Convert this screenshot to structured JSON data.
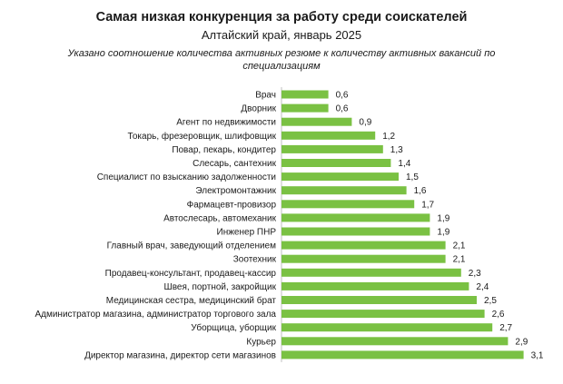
{
  "chart_data": {
    "type": "bar",
    "orientation": "horizontal",
    "title": "Самая низкая конкуренция за работу среди соискателей",
    "subtitle": "Алтайский край, январь 2025",
    "note": "Указано соотношение количества активных резюме к количеству активных вакансий по специализациям",
    "grid": false,
    "bar_color": "#7ac143",
    "categories": [
      "Врач",
      "Дворник",
      "Агент по недвижимости",
      "Токарь, фрезеровщик, шлифовщик",
      "Повар, пекарь, кондитер",
      "Слесарь, сантехник",
      "Специалист по взысканию задолженности",
      "Электромонтажник",
      "Фармацевт-провизор",
      "Автослесарь, автомеханик",
      "Инженер ПНР",
      "Главный врач, заведующий отделением",
      "Зоотехник",
      "Продавец-консультант, продавец-кассир",
      "Швея, портной, закройщик",
      "Медицинская сестра, медицинский брат",
      "Администратор магазина, администратор торгового зала",
      "Уборщица, уборщик",
      "Курьер",
      "Директор магазина, директор сети магазинов"
    ],
    "values": [
      0.6,
      0.6,
      0.9,
      1.2,
      1.3,
      1.4,
      1.5,
      1.6,
      1.7,
      1.9,
      1.9,
      2.1,
      2.1,
      2.3,
      2.4,
      2.5,
      2.6,
      2.7,
      2.9,
      3.1
    ],
    "value_labels": [
      "0,6",
      "0,6",
      "0,9",
      "1,2",
      "1,3",
      "1,4",
      "1,5",
      "1,6",
      "1,7",
      "1,9",
      "1,9",
      "2,1",
      "2,1",
      "2,3",
      "2,4",
      "2,5",
      "2,6",
      "2,7",
      "2,9",
      "3,1"
    ]
  }
}
